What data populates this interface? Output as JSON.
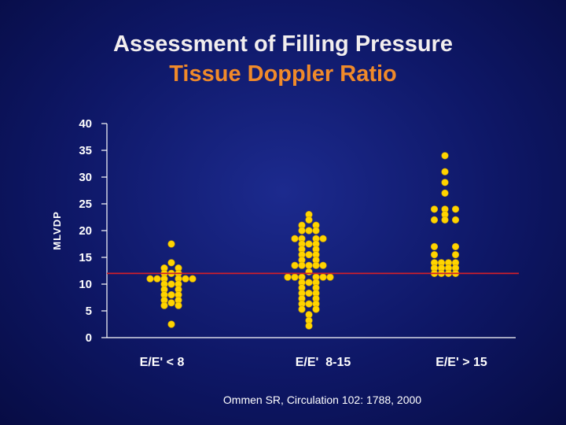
{
  "slide": {
    "title_line1": "Assessment of Filling Pressure",
    "title_line2": "Tissue Doppler Ratio",
    "citation": "Ommen SR, Circulation 102: 1788, 2000"
  },
  "colors": {
    "title1": "#f2eeee",
    "title2": "#f08a2a",
    "dot": "#ffd400",
    "dot_stroke": "#c89a00",
    "threshold": "#d01f2a",
    "axis": "#ffffff"
  },
  "chart_data": {
    "type": "scatter",
    "title": "Assessment of Filling Pressure",
    "subtitle": "Tissue Doppler Ratio",
    "xlabel": "",
    "ylabel": "MLVDP",
    "ylim": [
      0,
      40
    ],
    "yticks": [
      0,
      5,
      10,
      15,
      20,
      25,
      30,
      35,
      40
    ],
    "categories": [
      "E/E' < 8",
      "E/E'  8-15",
      "E/E' > 15"
    ],
    "threshold_line": 12,
    "grid": false,
    "series": [
      {
        "name": "E/E' < 8",
        "points": [
          {
            "offset": 0,
            "y": 17.5
          },
          {
            "offset": 0,
            "y": 14
          },
          {
            "offset": -1,
            "y": 13
          },
          {
            "offset": 1,
            "y": 13
          },
          {
            "offset": -1,
            "y": 12
          },
          {
            "offset": 0,
            "y": 12
          },
          {
            "offset": 1,
            "y": 12
          },
          {
            "offset": -3,
            "y": 11
          },
          {
            "offset": -2,
            "y": 11
          },
          {
            "offset": -1,
            "y": 11
          },
          {
            "offset": 1,
            "y": 11
          },
          {
            "offset": 2,
            "y": 11
          },
          {
            "offset": 3,
            "y": 11
          },
          {
            "offset": -1,
            "y": 10
          },
          {
            "offset": 0,
            "y": 10
          },
          {
            "offset": 1,
            "y": 10
          },
          {
            "offset": -1,
            "y": 9
          },
          {
            "offset": 1,
            "y": 9
          },
          {
            "offset": -1,
            "y": 8
          },
          {
            "offset": 0,
            "y": 8
          },
          {
            "offset": 1,
            "y": 8
          },
          {
            "offset": -1,
            "y": 7
          },
          {
            "offset": 1,
            "y": 7
          },
          {
            "offset": 0,
            "y": 6.5
          },
          {
            "offset": -1,
            "y": 6
          },
          {
            "offset": 1,
            "y": 6
          },
          {
            "offset": 0,
            "y": 2.5
          }
        ]
      },
      {
        "name": "E/E'  8-15",
        "points": [
          {
            "offset": 0,
            "y": 23
          },
          {
            "offset": 0,
            "y": 22
          },
          {
            "offset": -1,
            "y": 21
          },
          {
            "offset": 1,
            "y": 21
          },
          {
            "offset": -1,
            "y": 20
          },
          {
            "offset": 0,
            "y": 20
          },
          {
            "offset": 1,
            "y": 20
          },
          {
            "offset": -2,
            "y": 18.5
          },
          {
            "offset": -1,
            "y": 18.5
          },
          {
            "offset": 1,
            "y": 18.5
          },
          {
            "offset": 2,
            "y": 18.5
          },
          {
            "offset": -1,
            "y": 17.5
          },
          {
            "offset": 0,
            "y": 17.5
          },
          {
            "offset": 1,
            "y": 17.5
          },
          {
            "offset": -1,
            "y": 16.5
          },
          {
            "offset": 1,
            "y": 16.5
          },
          {
            "offset": -1,
            "y": 15.5
          },
          {
            "offset": 0,
            "y": 15.5
          },
          {
            "offset": 1,
            "y": 15.5
          },
          {
            "offset": -1,
            "y": 14.5
          },
          {
            "offset": 1,
            "y": 14.5
          },
          {
            "offset": -2,
            "y": 13.5
          },
          {
            "offset": -1,
            "y": 13.5
          },
          {
            "offset": 0,
            "y": 13.5
          },
          {
            "offset": 1,
            "y": 13.5
          },
          {
            "offset": 2,
            "y": 13.5
          },
          {
            "offset": 0,
            "y": 12.3
          },
          {
            "offset": -3,
            "y": 11.3
          },
          {
            "offset": -2,
            "y": 11.3
          },
          {
            "offset": -1,
            "y": 11.3
          },
          {
            "offset": 1,
            "y": 11.3
          },
          {
            "offset": 2,
            "y": 11.3
          },
          {
            "offset": 3,
            "y": 11.3
          },
          {
            "offset": -1,
            "y": 10.3
          },
          {
            "offset": 0,
            "y": 10.3
          },
          {
            "offset": 1,
            "y": 10.3
          },
          {
            "offset": -1,
            "y": 9.3
          },
          {
            "offset": 1,
            "y": 9.3
          },
          {
            "offset": -1,
            "y": 8.3
          },
          {
            "offset": 0,
            "y": 8.3
          },
          {
            "offset": 1,
            "y": 8.3
          },
          {
            "offset": -1,
            "y": 7.3
          },
          {
            "offset": 1,
            "y": 7.3
          },
          {
            "offset": -1,
            "y": 6.3
          },
          {
            "offset": 0,
            "y": 6.3
          },
          {
            "offset": 1,
            "y": 6.3
          },
          {
            "offset": -1,
            "y": 5.3
          },
          {
            "offset": 1,
            "y": 5.3
          },
          {
            "offset": 0,
            "y": 4.3
          },
          {
            "offset": 0,
            "y": 3.2
          },
          {
            "offset": 0,
            "y": 2.2
          }
        ]
      },
      {
        "name": "E/E' > 15",
        "points": [
          {
            "offset": 0,
            "y": 34
          },
          {
            "offset": 0,
            "y": 31
          },
          {
            "offset": 0,
            "y": 29
          },
          {
            "offset": 0,
            "y": 27
          },
          {
            "offset": -1.5,
            "y": 24
          },
          {
            "offset": 0,
            "y": 24
          },
          {
            "offset": 1.5,
            "y": 24
          },
          {
            "offset": 0,
            "y": 23
          },
          {
            "offset": -1.5,
            "y": 22
          },
          {
            "offset": 0,
            "y": 22
          },
          {
            "offset": 1.5,
            "y": 22
          },
          {
            "offset": -1.5,
            "y": 17
          },
          {
            "offset": 1.5,
            "y": 17
          },
          {
            "offset": -1.5,
            "y": 15.5
          },
          {
            "offset": 1.5,
            "y": 15.5
          },
          {
            "offset": -1.5,
            "y": 14
          },
          {
            "offset": -0.5,
            "y": 14
          },
          {
            "offset": 0.5,
            "y": 14
          },
          {
            "offset": 1.5,
            "y": 14
          },
          {
            "offset": -1.5,
            "y": 13
          },
          {
            "offset": -0.5,
            "y": 13
          },
          {
            "offset": 0.5,
            "y": 13
          },
          {
            "offset": 1.5,
            "y": 13
          },
          {
            "offset": -1.5,
            "y": 12
          },
          {
            "offset": -0.5,
            "y": 12
          },
          {
            "offset": 0.5,
            "y": 12
          },
          {
            "offset": 1.5,
            "y": 12
          }
        ]
      }
    ]
  }
}
